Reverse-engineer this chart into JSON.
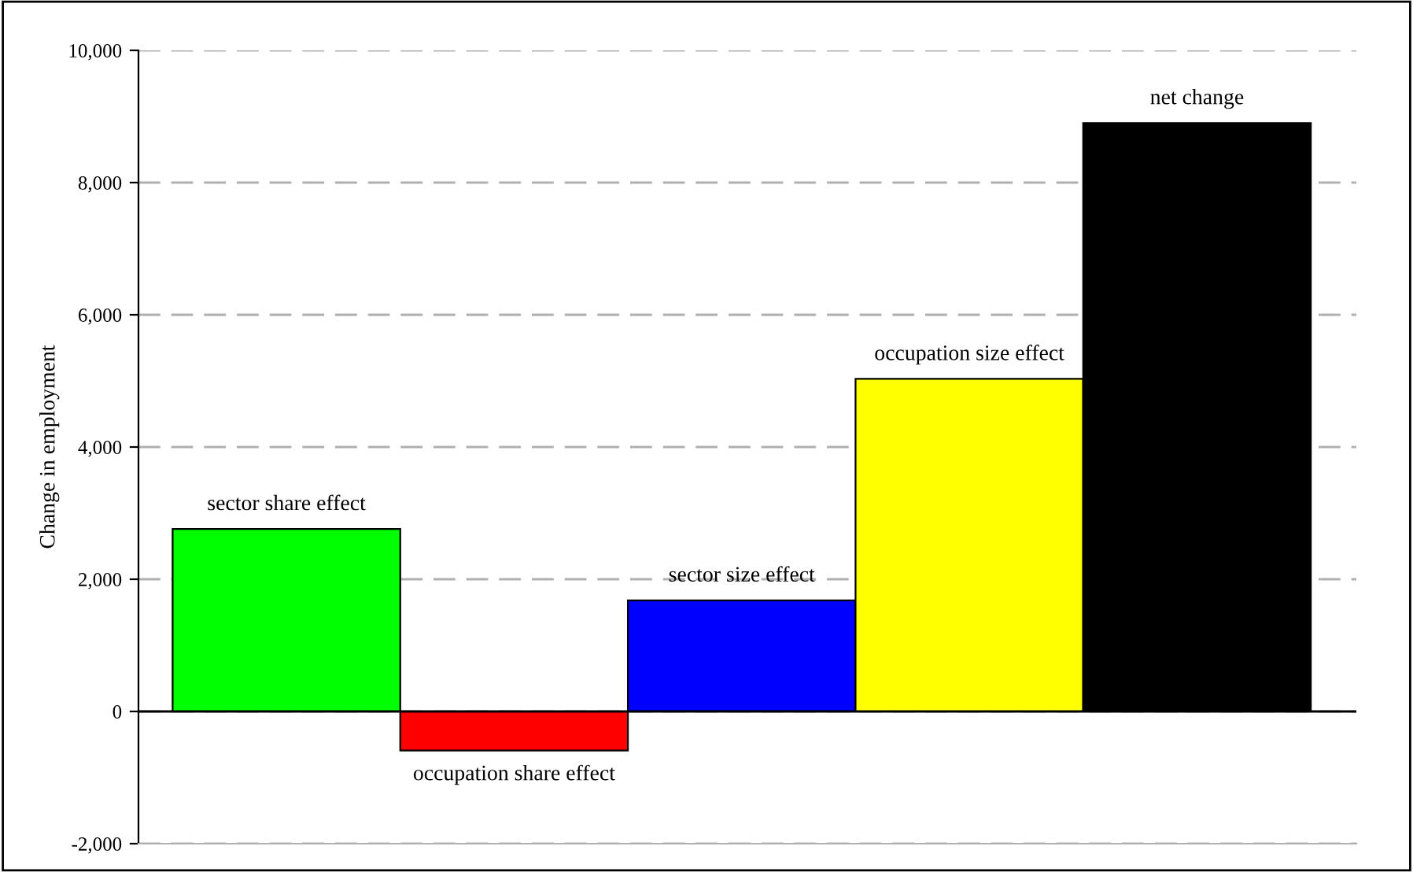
{
  "chart_data": {
    "type": "bar",
    "ylabel": "Change in employment",
    "categories": [
      "sector share effect",
      "occupation share effect",
      "sector size effect",
      "occupation size effect",
      "net change"
    ],
    "values": [
      2760,
      -590,
      1680,
      5030,
      8900
    ],
    "colors": [
      "#00ff00",
      "#ff0000",
      "#0000ff",
      "#ffff00",
      "#000000"
    ],
    "ylim": [
      -2000,
      10000
    ],
    "yticks": [
      {
        "value": -2000,
        "label": "-2,000"
      },
      0,
      {
        "value": 2000,
        "label": "2,000"
      },
      {
        "value": 4000,
        "label": "4,000"
      },
      {
        "value": 6000,
        "label": "6,000"
      },
      {
        "value": 8000,
        "label": "8,000"
      },
      {
        "value": 10000,
        "label": "10,000"
      }
    ],
    "grid": "y",
    "legend": false
  }
}
